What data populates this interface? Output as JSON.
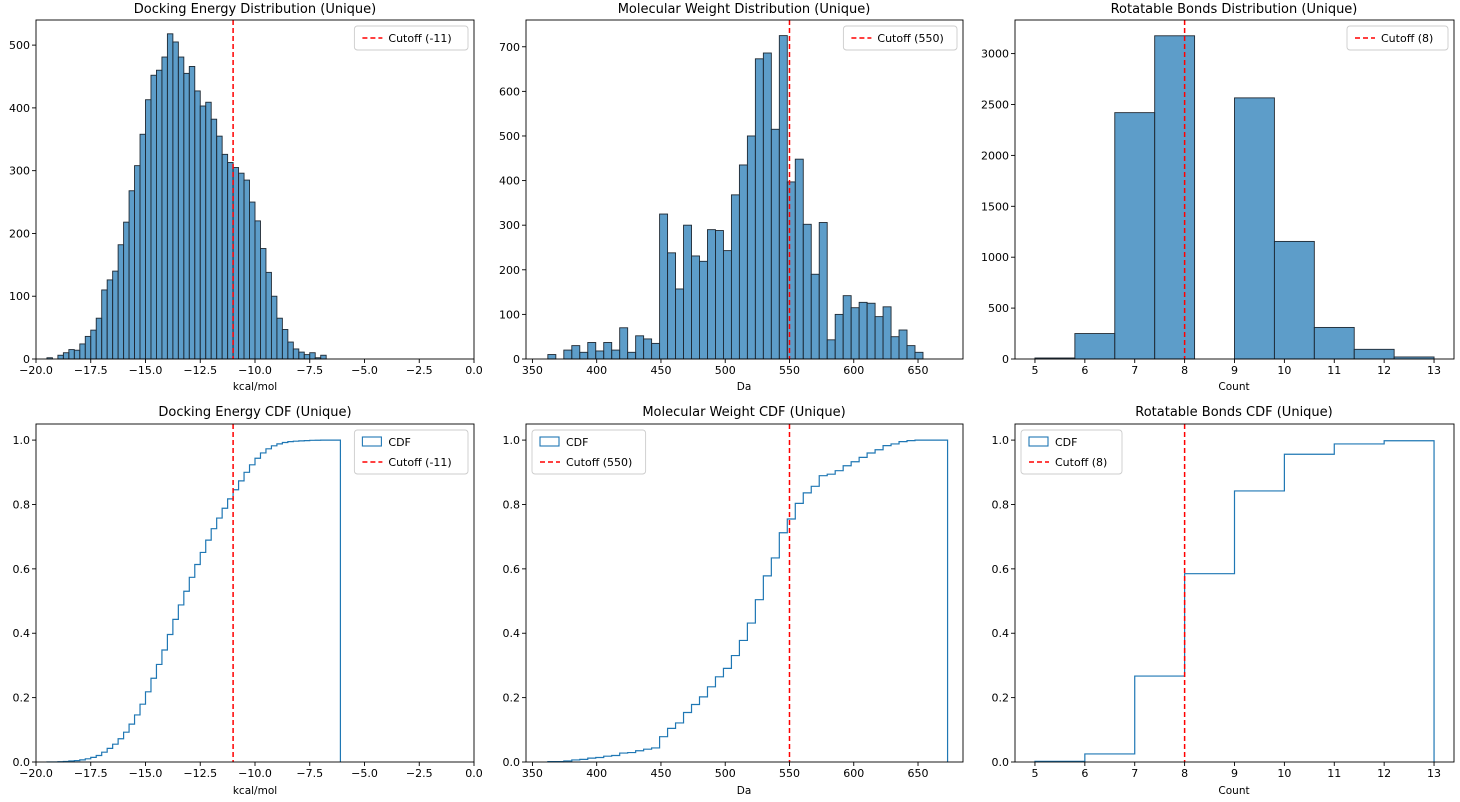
{
  "colors": {
    "bar_fill": "#1f77b4",
    "bar_edge": "#1f2933",
    "cdf_line": "#1f77b4",
    "cutoff": "#ff0000",
    "axis": "#000000"
  },
  "chart_data": [
    {
      "id": "docking-hist",
      "type": "bar",
      "title": "Docking Energy Distribution (Unique)",
      "xlabel": "kcal/mol",
      "ylabel": "",
      "xlim": [
        -20.0,
        0.0
      ],
      "ylim": [
        0,
        540
      ],
      "xticks": [
        -20.0,
        -17.5,
        -15.0,
        -12.5,
        -10.0,
        -7.5,
        -5.0,
        -2.5,
        0.0
      ],
      "xtick_labels": [
        "−20.0",
        "−17.5",
        "−15.0",
        "−12.5",
        "−10.0",
        "−7.5",
        "−5.0",
        "−2.5",
        "0.0"
      ],
      "yticks": [
        0,
        100,
        200,
        300,
        400,
        500
      ],
      "ytick_labels": [
        "0",
        "100",
        "200",
        "300",
        "400",
        "500"
      ],
      "bin_start": -19.5,
      "bin_width": 0.25,
      "values": [
        2,
        0,
        6,
        10,
        15,
        14,
        24,
        36,
        46,
        65,
        110,
        126,
        140,
        182,
        218,
        268,
        308,
        358,
        413,
        452,
        460,
        481,
        518,
        505,
        481,
        455,
        466,
        427,
        403,
        409,
        382,
        355,
        326,
        313,
        305,
        296,
        285,
        250,
        220,
        176,
        138,
        100,
        65,
        47,
        27,
        16,
        11,
        7,
        10,
        2,
        6
      ],
      "cutoff": {
        "value": -11,
        "label": "Cutoff (-11)"
      },
      "legend": {
        "position": "top-right",
        "entries": [
          "Cutoff (-11)"
        ]
      }
    },
    {
      "id": "mw-hist",
      "type": "bar",
      "title": "Molecular Weight Distribution (Unique)",
      "xlabel": "Da",
      "ylabel": "",
      "xlim": [
        345,
        685
      ],
      "ylim": [
        0,
        760
      ],
      "xticks": [
        350,
        400,
        450,
        500,
        550,
        600,
        650
      ],
      "xtick_labels": [
        "350",
        "400",
        "450",
        "500",
        "550",
        "600",
        "650"
      ],
      "yticks": [
        0,
        100,
        200,
        300,
        400,
        500,
        600,
        700
      ],
      "ytick_labels": [
        "0",
        "100",
        "200",
        "300",
        "400",
        "500",
        "600",
        "700"
      ],
      "bin_start": 362,
      "bin_width": 6.21,
      "values": [
        10,
        0,
        20,
        30,
        15,
        37,
        18,
        37,
        20,
        70,
        15,
        52,
        45,
        35,
        325,
        238,
        157,
        300,
        231,
        219,
        290,
        288,
        243,
        368,
        435,
        500,
        673,
        686,
        515,
        725,
        397,
        448,
        302,
        190,
        306,
        43,
        100,
        142,
        115,
        127,
        125,
        95,
        117,
        50,
        65,
        30,
        15
      ],
      "cutoff": {
        "value": 550,
        "label": "Cutoff (550)"
      },
      "legend": {
        "position": "top-right",
        "entries": [
          "Cutoff (550)"
        ]
      }
    },
    {
      "id": "rot-hist",
      "type": "bar",
      "title": "Rotatable Bonds Distribution (Unique)",
      "xlabel": "Count",
      "ylabel": "",
      "xlim": [
        4.6,
        13.4
      ],
      "ylim": [
        0,
        3330
      ],
      "xticks": [
        5,
        6,
        7,
        8,
        9,
        10,
        11,
        12,
        13
      ],
      "xtick_labels": [
        "5",
        "6",
        "7",
        "8",
        "9",
        "10",
        "11",
        "12",
        "13"
      ],
      "yticks": [
        0,
        500,
        1000,
        1500,
        2000,
        2500,
        3000
      ],
      "ytick_labels": [
        "0",
        "500",
        "1000",
        "1500",
        "2000",
        "2500",
        "3000"
      ],
      "bin_start": 5.0,
      "bin_width": 0.8,
      "values": [
        10,
        250,
        2420,
        3175,
        0,
        2565,
        1155,
        310,
        95,
        20
      ],
      "cutoff": {
        "value": 8,
        "label": "Cutoff (8)"
      },
      "legend": {
        "position": "top-right",
        "entries": [
          "Cutoff (8)"
        ]
      }
    },
    {
      "id": "docking-cdf",
      "type": "line",
      "title": "Docking Energy CDF (Unique)",
      "xlabel": "kcal/mol",
      "ylabel": "",
      "xlim": [
        -20.0,
        0.0
      ],
      "ylim": [
        0.0,
        1.05
      ],
      "xticks": [
        -20.0,
        -17.5,
        -15.0,
        -12.5,
        -10.0,
        -7.5,
        -5.0,
        -2.5,
        0.0
      ],
      "xtick_labels": [
        "−20.0",
        "−17.5",
        "−15.0",
        "−12.5",
        "−10.0",
        "−7.5",
        "−5.0",
        "−2.5",
        "0.0"
      ],
      "yticks": [
        0.0,
        0.2,
        0.4,
        0.6,
        0.8,
        1.0
      ],
      "ytick_labels": [
        "0.0",
        "0.2",
        "0.4",
        "0.6",
        "0.8",
        "1.0"
      ],
      "bin_start": -19.5,
      "bin_width": 0.25,
      "from_hist": "docking-hist",
      "x_end": -6.1,
      "cutoff": {
        "value": -11,
        "label": "Cutoff (-11)"
      },
      "legend": {
        "position": "top-right",
        "entries": [
          "CDF",
          "Cutoff (-11)"
        ]
      }
    },
    {
      "id": "mw-cdf",
      "type": "line",
      "title": "Molecular Weight CDF (Unique)",
      "xlabel": "Da",
      "ylabel": "",
      "xlim": [
        345,
        685
      ],
      "ylim": [
        0.0,
        1.05
      ],
      "xticks": [
        350,
        400,
        450,
        500,
        550,
        600,
        650
      ],
      "xtick_labels": [
        "350",
        "400",
        "450",
        "500",
        "550",
        "600",
        "650"
      ],
      "yticks": [
        0.0,
        0.2,
        0.4,
        0.6,
        0.8,
        1.0
      ],
      "ytick_labels": [
        "0.0",
        "0.2",
        "0.4",
        "0.6",
        "0.8",
        "1.0"
      ],
      "bin_start": 362,
      "bin_width": 6.21,
      "from_hist": "mw-hist",
      "x_end": 673,
      "cutoff": {
        "value": 550,
        "label": "Cutoff (550)"
      },
      "legend": {
        "position": "top-left",
        "entries": [
          "CDF",
          "Cutoff (550)"
        ]
      }
    },
    {
      "id": "rot-cdf",
      "type": "line",
      "title": "Rotatable Bonds CDF (Unique)",
      "xlabel": "Count",
      "ylabel": "",
      "xlim": [
        4.6,
        13.4
      ],
      "ylim": [
        0.0,
        1.05
      ],
      "xticks": [
        5,
        6,
        7,
        8,
        9,
        10,
        11,
        12,
        13
      ],
      "xtick_labels": [
        "5",
        "6",
        "7",
        "8",
        "9",
        "10",
        "11",
        "12",
        "13"
      ],
      "yticks": [
        0.0,
        0.2,
        0.4,
        0.6,
        0.8,
        1.0
      ],
      "ytick_labels": [
        "0.0",
        "0.2",
        "0.4",
        "0.6",
        "0.8",
        "1.0"
      ],
      "step_x": [
        5,
        6,
        7,
        8,
        9,
        10,
        11,
        12,
        13
      ],
      "step_y": [
        0.002,
        0.025,
        0.267,
        0.585,
        0.842,
        0.956,
        0.988,
        0.998,
        1.0
      ],
      "cutoff": {
        "value": 8,
        "label": "Cutoff (8)"
      },
      "legend": {
        "position": "top-left",
        "entries": [
          "CDF",
          "Cutoff (8)"
        ]
      }
    }
  ]
}
